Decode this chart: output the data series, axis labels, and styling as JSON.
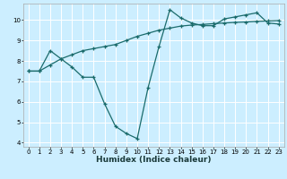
{
  "title": "",
  "xlabel": "Humidex (Indice chaleur)",
  "bg_color": "#cceeff",
  "line_color": "#1a6b6b",
  "grid_color": "#ffffff",
  "xlim": [
    -0.5,
    23.5
  ],
  "ylim": [
    3.8,
    10.8
  ],
  "xticks": [
    0,
    1,
    2,
    3,
    4,
    5,
    6,
    7,
    8,
    9,
    10,
    11,
    12,
    13,
    14,
    15,
    16,
    17,
    18,
    19,
    20,
    21,
    22,
    23
  ],
  "yticks": [
    4,
    5,
    6,
    7,
    8,
    9,
    10
  ],
  "line1_x": [
    0,
    1,
    2,
    3,
    4,
    5,
    6,
    7,
    8,
    9,
    10,
    11,
    12,
    13,
    14,
    15,
    16,
    17,
    18,
    19,
    20,
    21,
    22,
    23
  ],
  "line1_y": [
    7.5,
    7.5,
    8.5,
    8.1,
    7.7,
    7.2,
    7.2,
    5.9,
    4.8,
    4.45,
    4.2,
    6.7,
    8.7,
    10.5,
    10.1,
    9.85,
    9.72,
    9.72,
    10.05,
    10.15,
    10.25,
    10.35,
    9.85,
    9.8
  ],
  "line2_x": [
    0,
    1,
    2,
    3,
    4,
    5,
    6,
    7,
    8,
    9,
    10,
    11,
    12,
    13,
    14,
    15,
    16,
    17,
    18,
    19,
    20,
    21,
    22,
    23
  ],
  "line2_y": [
    7.5,
    7.5,
    7.8,
    8.1,
    8.3,
    8.5,
    8.6,
    8.7,
    8.8,
    9.0,
    9.2,
    9.35,
    9.5,
    9.6,
    9.7,
    9.75,
    9.78,
    9.82,
    9.85,
    9.88,
    9.9,
    9.93,
    9.95,
    9.97
  ],
  "tick_fontsize": 5.0,
  "xlabel_fontsize": 6.5,
  "marker_size": 3.5
}
